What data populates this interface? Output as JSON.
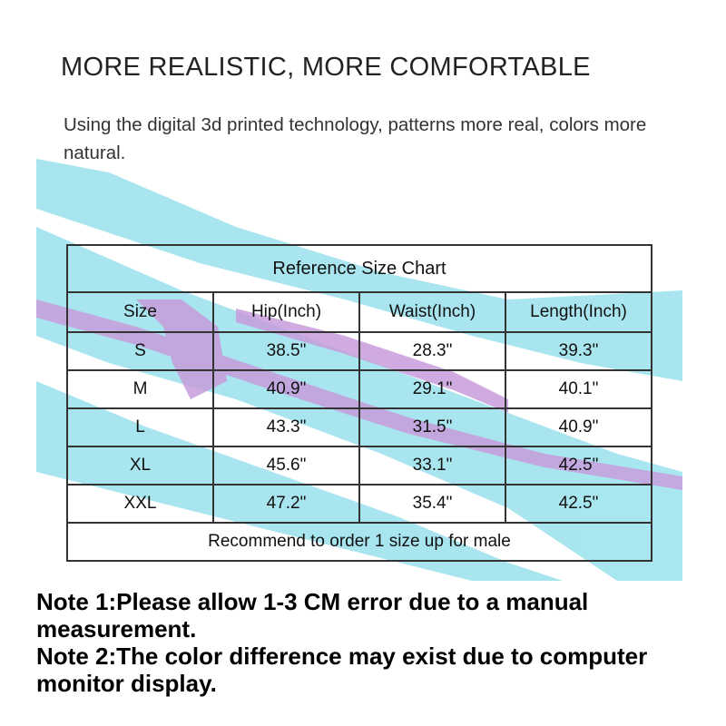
{
  "headline": "MORE REALISTIC, MORE COMFORTABLE",
  "subtitle": "Using the digital 3d printed technology, patterns more real, colors more natural.",
  "background_colors": {
    "stroke_cyan": "#9fe3ee",
    "stroke_purple": "#c79ddc"
  },
  "size_chart": {
    "title": "Reference Size Chart",
    "headers": [
      "Size",
      "Hip(Inch)",
      "Waist(Inch)",
      "Length(Inch)"
    ],
    "rows": [
      [
        "S",
        "38.5\"",
        "28.3\"",
        "39.3\""
      ],
      [
        "M",
        "40.9\"",
        "29.1\"",
        "40.1\""
      ],
      [
        "L",
        "43.3\"",
        "31.5\"",
        "40.9\""
      ],
      [
        "XL",
        "45.6\"",
        "33.1\"",
        "42.5\""
      ],
      [
        "XXL",
        "47.2\"",
        "35.4\"",
        "42.5\""
      ]
    ],
    "footer": "Recommend to order 1 size up for male"
  },
  "notes": [
    "Note 1:Please allow 1-3 CM error due to a manual measurement.",
    "Note 2:The color difference may exist due to computer monitor display."
  ]
}
